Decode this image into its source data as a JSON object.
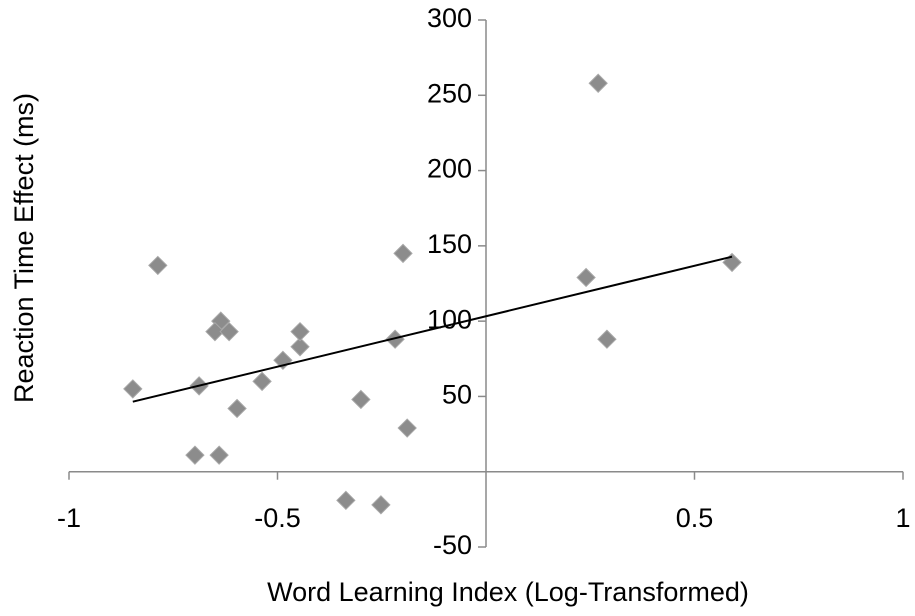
{
  "chart_data": {
    "type": "scatter",
    "xlabel": "Word Learning Index (Log-Transformed)",
    "ylabel": "Reaction Time Effect (ms)",
    "xlim": [
      -1,
      1
    ],
    "xticks": [
      -1,
      -0.5,
      0.5,
      1
    ],
    "ylim": [
      -50,
      300
    ],
    "yticks": [
      -50,
      50,
      100,
      150,
      200,
      250,
      300
    ],
    "series": [
      {
        "color": "#8c8c8c",
        "x": [
          -0.847,
          -0.787,
          -0.688,
          -0.698,
          -0.64,
          -0.636,
          -0.65,
          -0.616,
          -0.597,
          -0.537,
          -0.487,
          -0.446,
          -0.446,
          -0.336,
          -0.3,
          -0.252,
          -0.218,
          -0.199,
          -0.189,
          0.24,
          0.269,
          0.29,
          0.59
        ],
        "values": [
          55,
          137,
          57,
          11,
          11,
          100,
          93,
          93,
          42,
          60,
          74,
          83,
          93,
          -19,
          48,
          -22,
          88,
          145,
          29,
          129,
          258,
          88,
          139
        ]
      }
    ],
    "trendline": {
      "color": "#000000",
      "x": [
        -0.847,
        0.59
      ],
      "values": [
        46.5,
        142.8
      ]
    }
  }
}
